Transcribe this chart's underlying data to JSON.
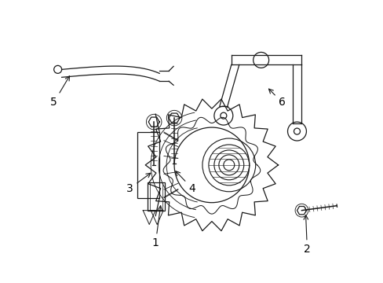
{
  "background_color": "#ffffff",
  "line_color": "#1a1a1a",
  "label_color": "#000000",
  "fig_width": 4.89,
  "fig_height": 3.6,
  "dpi": 100,
  "font_size": 10,
  "lw": 0.9
}
